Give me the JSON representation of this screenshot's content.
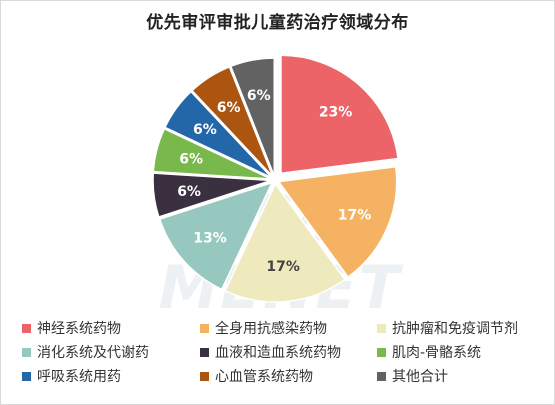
{
  "chart_data": {
    "type": "pie",
    "title": "优先审评审批儿童药治疗领域分布",
    "watermark": "米内网 MENET",
    "slices": [
      {
        "label": "神经系统药物",
        "value": 23,
        "display": "23%",
        "color": "#ed6468",
        "label_color": "#ffffff"
      },
      {
        "label": "全身用抗感染药物",
        "value": 17,
        "display": "17%",
        "color": "#f5b263",
        "label_color": "#ffffff"
      },
      {
        "label": "抗肿瘤和免疫调节剂",
        "value": 17,
        "display": "17%",
        "color": "#efeabd",
        "label_color": "#444444"
      },
      {
        "label": "消化系统及代谢药",
        "value": 13,
        "display": "13%",
        "color": "#96c8bf",
        "label_color": "#ffffff"
      },
      {
        "label": "血液和造血系统药物",
        "value": 6,
        "display": "6%",
        "color": "#3a3040",
        "label_color": "#ffffff"
      },
      {
        "label": "肌肉-骨骼系统",
        "value": 6,
        "display": "6%",
        "color": "#79b94c",
        "label_color": "#ffffff"
      },
      {
        "label": "呼吸系统用药",
        "value": 6,
        "display": "6%",
        "color": "#2367a9",
        "label_color": "#ffffff"
      },
      {
        "label": "心血管系统药物",
        "value": 6,
        "display": "6%",
        "color": "#ac5510",
        "label_color": "#ffffff"
      },
      {
        "label": "其他合计",
        "value": 6,
        "display": "6%",
        "color": "#626262",
        "label_color": "#ffffff"
      }
    ],
    "legend_position": "bottom"
  }
}
